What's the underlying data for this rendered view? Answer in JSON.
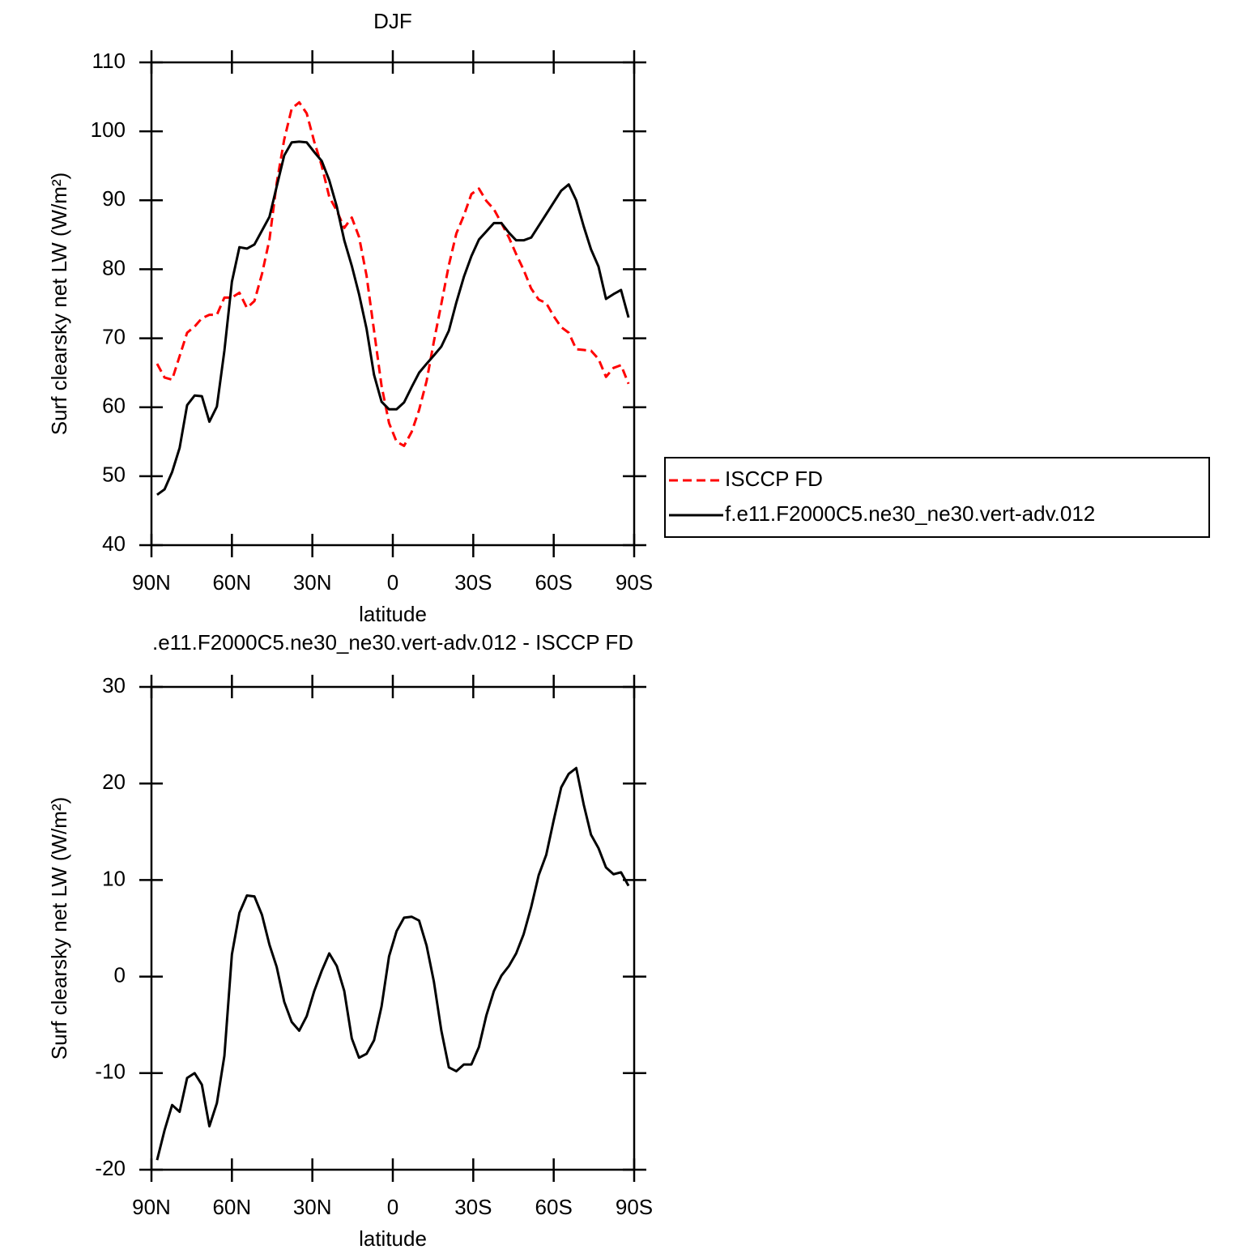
{
  "chart_data": [
    {
      "type": "line",
      "title": "DJF",
      "xlabel": "latitude",
      "ylabel": "Surf clearsky net LW (W/m²)",
      "x": [
        87.9,
        85.1,
        82.3,
        79.5,
        76.7,
        73.9,
        71.2,
        68.4,
        65.6,
        62.8,
        60.0,
        57.2,
        54.4,
        51.6,
        48.8,
        46.0,
        43.3,
        40.5,
        37.7,
        34.9,
        32.1,
        29.3,
        26.5,
        23.7,
        20.9,
        18.1,
        15.3,
        12.6,
        9.8,
        7.0,
        4.2,
        1.4,
        -1.4,
        -4.2,
        -7.0,
        -9.8,
        -12.6,
        -15.3,
        -18.1,
        -20.9,
        -23.7,
        -26.5,
        -29.3,
        -32.1,
        -34.9,
        -37.7,
        -40.5,
        -43.3,
        -46.0,
        -48.8,
        -51.6,
        -54.4,
        -57.2,
        -60.0,
        -62.8,
        -65.6,
        -68.4,
        -71.2,
        -73.9,
        -76.7,
        -79.5,
        -82.3,
        -85.1,
        -87.9
      ],
      "xlim": [
        90,
        -90
      ],
      "xticks": [
        {
          "value": 90,
          "label": "90N"
        },
        {
          "value": 60,
          "label": "60N"
        },
        {
          "value": 30,
          "label": "30N"
        },
        0,
        {
          "value": -30,
          "label": "30S"
        },
        {
          "value": -60,
          "label": "60S"
        },
        {
          "value": -90,
          "label": "90S"
        }
      ],
      "ylim": [
        40,
        110
      ],
      "yticks": [
        40,
        50,
        60,
        70,
        80,
        90,
        100,
        110
      ],
      "legend": "right",
      "series": [
        {
          "name": "ISCCP FD",
          "color": "#ff0000",
          "dash": "dashed",
          "values": [
            66.3,
            64.3,
            64.0,
            67.4,
            70.8,
            71.7,
            72.9,
            73.4,
            73.4,
            75.9,
            75.9,
            76.6,
            74.4,
            75.4,
            79.3,
            84.3,
            92.5,
            98.8,
            103.3,
            104.2,
            102.6,
            98.5,
            95.0,
            90.5,
            88.5,
            86.0,
            87.5,
            84.7,
            79.1,
            71.1,
            63.1,
            57.7,
            55.0,
            54.4,
            56.4,
            59.6,
            63.8,
            69.5,
            75.0,
            80.6,
            85.2,
            87.8,
            90.9,
            91.7,
            89.9,
            88.7,
            86.7,
            84.6,
            82.2,
            79.9,
            77.2,
            75.6,
            75.1,
            73.2,
            71.6,
            70.8,
            68.4,
            68.3,
            68.2,
            67.0,
            64.4,
            65.7,
            66.1,
            63.4
          ]
        },
        {
          "name": "f.e11.F2000C5.ne30_ne30.vert-adv.012",
          "color": "#000000",
          "dash": "solid",
          "values": [
            47.3,
            48.1,
            50.6,
            54.1,
            60.3,
            61.7,
            61.6,
            57.9,
            60.1,
            68.2,
            78.2,
            83.2,
            83.0,
            83.6,
            85.6,
            87.6,
            92.0,
            96.5,
            98.4,
            98.5,
            98.4,
            97.0,
            95.7,
            92.9,
            89.1,
            84.2,
            80.5,
            76.4,
            71.4,
            64.7,
            60.8,
            59.7,
            59.7,
            60.7,
            62.9,
            65.0,
            66.3,
            67.5,
            68.8,
            71.1,
            75.2,
            78.9,
            81.9,
            84.3,
            85.5,
            86.7,
            86.7,
            85.3,
            84.2,
            84.2,
            84.6,
            86.3,
            88.0,
            89.7,
            91.4,
            92.3,
            90.0,
            86.2,
            82.9,
            80.4,
            75.7,
            76.4,
            77.0,
            73.0
          ]
        }
      ]
    },
    {
      "type": "line",
      "title": ".e11.F2000C5.ne30_ne30.vert-adv.012 - ISCCP FD",
      "xlabel": "latitude",
      "ylabel": "Surf clearsky net LW (W/m²)",
      "x": [
        87.9,
        85.1,
        82.3,
        79.5,
        76.7,
        73.9,
        71.2,
        68.4,
        65.6,
        62.8,
        60.0,
        57.2,
        54.4,
        51.6,
        48.8,
        46.0,
        43.3,
        40.5,
        37.7,
        34.9,
        32.1,
        29.3,
        26.5,
        23.7,
        20.9,
        18.1,
        15.3,
        12.6,
        9.8,
        7.0,
        4.2,
        1.4,
        -1.4,
        -4.2,
        -7.0,
        -9.8,
        -12.6,
        -15.3,
        -18.1,
        -20.9,
        -23.7,
        -26.5,
        -29.3,
        -32.1,
        -34.9,
        -37.7,
        -40.5,
        -43.3,
        -46.0,
        -48.8,
        -51.6,
        -54.4,
        -57.2,
        -60.0,
        -62.8,
        -65.6,
        -68.4,
        -71.2,
        -73.9,
        -76.7,
        -79.5,
        -82.3,
        -85.1,
        -87.9
      ],
      "xlim": [
        90,
        -90
      ],
      "xticks": [
        {
          "value": 90,
          "label": "90N"
        },
        {
          "value": 60,
          "label": "60N"
        },
        {
          "value": 30,
          "label": "30N"
        },
        0,
        {
          "value": -30,
          "label": "30S"
        },
        {
          "value": -60,
          "label": "60S"
        },
        {
          "value": -90,
          "label": "90S"
        }
      ],
      "ylim": [
        -20,
        30
      ],
      "yticks": [
        -20,
        -10,
        0,
        10,
        20,
        30
      ],
      "series": [
        {
          "color": "#000000",
          "dash": "solid",
          "values": [
            -19.0,
            -15.9,
            -13.3,
            -14.0,
            -10.5,
            -10.0,
            -11.2,
            -15.5,
            -13.1,
            -8.2,
            2.3,
            6.6,
            8.4,
            8.3,
            6.4,
            3.3,
            1.0,
            -2.6,
            -4.7,
            -5.6,
            -4.1,
            -1.5,
            0.6,
            2.4,
            1.1,
            -1.5,
            -6.4,
            -8.4,
            -8.0,
            -6.6,
            -3.1,
            2.1,
            4.7,
            6.1,
            6.2,
            5.8,
            3.2,
            -0.5,
            -5.6,
            -9.4,
            -9.8,
            -9.1,
            -9.1,
            -7.3,
            -4.0,
            -1.5,
            0.1,
            1.1,
            2.4,
            4.4,
            7.2,
            10.5,
            12.6,
            16.2,
            19.6,
            21.0,
            21.6,
            17.8,
            14.7,
            13.3,
            11.3,
            10.6,
            10.8,
            9.4
          ]
        }
      ]
    }
  ]
}
